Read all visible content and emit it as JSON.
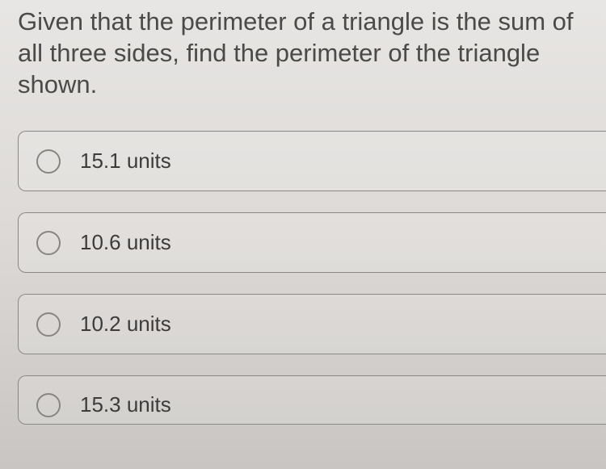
{
  "question": {
    "text": "Given that the perimeter of a triangle is the sum of all three sides, find the perimeter of the triangle shown."
  },
  "options": [
    {
      "label": "15.1 units"
    },
    {
      "label": "10.6 units"
    },
    {
      "label": "10.2 units"
    },
    {
      "label": "15.3 units"
    }
  ],
  "styles": {
    "question_color": "#4a4a4a",
    "question_fontsize": 31,
    "option_border_color": "#8a8886",
    "option_border_radius": 10,
    "radio_border_color": "#888683",
    "radio_size": 30,
    "option_label_color": "#3c3c3c",
    "option_label_fontsize": 26,
    "background_gradient_top": "#e8e6e4",
    "background_gradient_bottom": "#c8c5c2"
  }
}
